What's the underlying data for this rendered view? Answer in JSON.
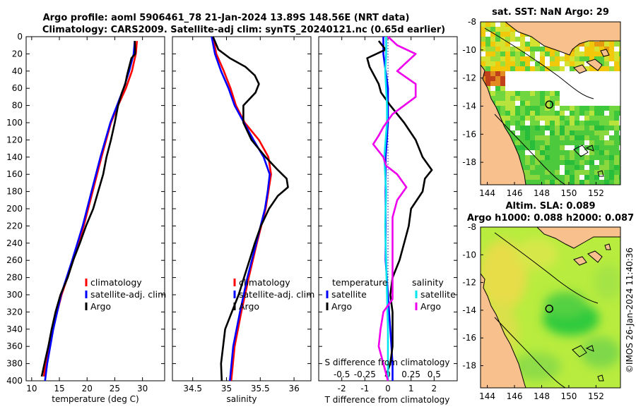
{
  "figure": {
    "title_line1": "Argo profile: aoml 5906461_78 21-Jan-2024 13.89S 148.56E (NRT data)",
    "title_line2": "Climatology: CARS2009. Satellite-adj clim: synTS_20240121.nc (0.65d earlier)",
    "credit": "©IMOS 26-Jan-2024 11:40:36"
  },
  "colors": {
    "climatology": "#ff0000",
    "satellite": "#0000ff",
    "argo": "#000000",
    "salinity": "#00e5ee",
    "argo_salinity": "#ee00ee",
    "land": "#f7c08c"
  },
  "chart_data": [
    {
      "id": "temperature",
      "type": "line",
      "xlabel": "temperature (deg C)",
      "ylabel": "",
      "xlim": [
        9,
        34
      ],
      "ylim": [
        0,
        400
      ],
      "y_reversed": true,
      "xticks": [
        10,
        15,
        20,
        25,
        30
      ],
      "yticks": [
        0,
        20,
        40,
        60,
        80,
        100,
        120,
        140,
        160,
        180,
        200,
        220,
        240,
        260,
        280,
        300,
        320,
        340,
        360,
        380,
        400
      ],
      "legend": [
        "climatology",
        "satellite-adj. clim",
        "Argo"
      ],
      "legend_position": "bottom-right",
      "series": [
        {
          "name": "climatology",
          "color": "#ff0000",
          "depth": [
            5,
            20,
            40,
            60,
            80,
            100,
            140,
            180,
            220,
            260,
            300,
            340,
            380,
            395
          ],
          "values": [
            29.0,
            28.8,
            28.1,
            27.0,
            25.6,
            24.3,
            22.6,
            21.0,
            19.4,
            17.5,
            15.4,
            13.8,
            12.5,
            12.2
          ]
        },
        {
          "name": "satellite-adj. clim",
          "color": "#0000ff",
          "depth": [
            5,
            20,
            40,
            60,
            80,
            100,
            140,
            180,
            220,
            260,
            300,
            340,
            380,
            400
          ],
          "values": [
            28.6,
            28.4,
            27.6,
            26.6,
            25.4,
            24.2,
            22.4,
            20.8,
            19.2,
            17.3,
            15.3,
            13.9,
            12.8,
            12.4
          ]
        },
        {
          "name": "Argo",
          "color": "#000000",
          "depth": [
            5,
            20,
            25,
            35,
            45,
            55,
            65,
            80,
            100,
            120,
            140,
            160,
            180,
            200,
            220,
            240,
            260,
            280,
            300,
            320,
            340,
            360,
            380,
            395
          ],
          "values": [
            28.6,
            28.7,
            28.0,
            27.6,
            27.2,
            26.9,
            26.3,
            25.6,
            25.0,
            24.3,
            23.5,
            22.9,
            22.0,
            21.1,
            19.8,
            18.7,
            17.5,
            16.5,
            15.2,
            14.3,
            13.6,
            13.0,
            12.3,
            11.8
          ]
        }
      ]
    },
    {
      "id": "salinity",
      "type": "line",
      "xlabel": "salinity",
      "ylabel": "",
      "xlim": [
        34.2,
        36.25
      ],
      "ylim": [
        0,
        400
      ],
      "y_reversed": true,
      "xticks": [
        34.5,
        35,
        35.5,
        36
      ],
      "legend": [
        "climatology",
        "satellite-adj. clim",
        "Argo"
      ],
      "legend_position": "bottom-right",
      "series": [
        {
          "name": "climatology",
          "color": "#ff0000",
          "depth": [
            0,
            20,
            40,
            60,
            80,
            100,
            120,
            140,
            160,
            180,
            200,
            240,
            280,
            320,
            360,
            400
          ],
          "values": [
            34.8,
            34.85,
            34.96,
            35.06,
            35.14,
            35.27,
            35.48,
            35.62,
            35.66,
            35.62,
            35.58,
            35.45,
            35.33,
            35.22,
            35.12,
            35.07
          ]
        },
        {
          "name": "satellite-adj. clim",
          "color": "#0000ff",
          "depth": [
            0,
            20,
            40,
            60,
            80,
            100,
            120,
            140,
            160,
            180,
            200,
            240,
            280,
            320,
            360,
            400
          ],
          "values": [
            34.78,
            34.83,
            34.92,
            35.03,
            35.12,
            35.26,
            35.4,
            35.55,
            35.64,
            35.61,
            35.57,
            35.44,
            35.31,
            35.2,
            35.1,
            35.05
          ]
        },
        {
          "name": "Argo",
          "color": "#000000",
          "depth": [
            0,
            15,
            25,
            35,
            45,
            55,
            65,
            80,
            100,
            120,
            140,
            155,
            165,
            175,
            185,
            200,
            220,
            240,
            260,
            280,
            300,
            320,
            340,
            360,
            380,
            400
          ],
          "values": [
            34.8,
            34.88,
            35.05,
            35.28,
            35.42,
            35.48,
            35.43,
            35.25,
            35.25,
            35.37,
            35.58,
            35.76,
            35.89,
            35.91,
            35.76,
            35.63,
            35.51,
            35.42,
            35.34,
            35.26,
            35.18,
            35.08,
            34.98,
            34.95,
            34.92,
            34.93
          ]
        }
      ]
    },
    {
      "id": "difference",
      "type": "line",
      "xlabel": "T difference from climatology",
      "top_xlabel": "S difference from climatology",
      "ylabel": "",
      "xlim": [
        -3,
        3
      ],
      "top_xlim": [
        -0.75,
        0.75
      ],
      "ylim": [
        0,
        400
      ],
      "y_reversed": true,
      "xticks": [
        -2,
        -1,
        0,
        1,
        2
      ],
      "top_xticks": [
        "-0.5",
        "-0.25",
        "0",
        "0.25",
        "0.5"
      ],
      "legend_left_title": "temperature",
      "legend_right_title": "salinity",
      "legend_left": [
        "satellite",
        "Argo"
      ],
      "legend_right": [
        "satellite",
        "Argo"
      ],
      "legend_position": "bottom",
      "series": [
        {
          "name": "temperature satellite",
          "axis": "T",
          "color": "#0000ff",
          "depth": [
            0,
            20,
            40,
            60,
            80,
            100,
            140,
            180,
            220,
            260,
            300,
            340,
            380,
            400
          ],
          "values": [
            -0.2,
            -0.2,
            -0.1,
            0.0,
            0.0,
            0.0,
            -0.1,
            -0.1,
            -0.1,
            -0.1,
            0.0,
            0.1,
            0.2,
            0.2
          ]
        },
        {
          "name": "temperature Argo",
          "axis": "T",
          "color": "#000000",
          "depth": [
            5,
            15,
            25,
            35,
            45,
            55,
            65,
            80,
            100,
            120,
            140,
            155,
            165,
            180,
            200,
            220,
            240,
            260,
            280,
            300,
            320,
            340,
            360,
            380,
            395
          ],
          "values": [
            -0.4,
            -0.1,
            -0.9,
            -0.8,
            -0.6,
            -0.4,
            -0.3,
            0.1,
            0.7,
            1.2,
            1.5,
            1.9,
            1.6,
            1.5,
            1.0,
            0.9,
            0.7,
            0.5,
            0.2,
            0.1,
            0.2,
            0.2,
            0.2,
            0.1,
            -0.1
          ]
        },
        {
          "name": "salinity satellite",
          "axis": "S",
          "color": "#00e5ee",
          "depth": [
            0,
            20,
            40,
            60,
            80,
            100,
            140,
            180,
            220,
            260,
            300,
            340,
            380,
            400
          ],
          "values": [
            -0.02,
            -0.02,
            -0.03,
            -0.02,
            -0.01,
            -0.01,
            -0.04,
            -0.02,
            -0.03,
            -0.02,
            -0.01,
            0.0,
            0.0,
            0.0
          ]
        },
        {
          "name": "salinity Argo",
          "axis": "S",
          "color": "#ee00ee",
          "depth": [
            0,
            10,
            20,
            30,
            40,
            55,
            70,
            90,
            105,
            115,
            125,
            140,
            150,
            160,
            175,
            190,
            210,
            230,
            250,
            270,
            290,
            305,
            320,
            340,
            360,
            380,
            400
          ],
          "values": [
            0.0,
            0.1,
            0.3,
            0.2,
            0.1,
            0.3,
            0.3,
            0.05,
            -0.05,
            -0.1,
            -0.16,
            -0.05,
            -0.02,
            0.1,
            0.2,
            0.1,
            0.05,
            0.05,
            0.05,
            0.05,
            0.05,
            0.05,
            -0.05,
            -0.08,
            -0.1,
            -0.05,
            0.0
          ]
        }
      ]
    },
    {
      "id": "sst_map",
      "type": "heatmap",
      "title": "sat. SST: NaN Argo: 29",
      "xlim": [
        143.5,
        153.8
      ],
      "ylim": [
        -19.6,
        -8.0
      ],
      "xticks": [
        144,
        146,
        148,
        150,
        152
      ],
      "yticks": [
        -8,
        -10,
        -12,
        -14,
        -16,
        -18
      ],
      "argo_location": [
        148.56,
        -13.89
      ]
    },
    {
      "id": "sla_map",
      "type": "heatmap",
      "title": "Altim. SLA: 0.089",
      "subtitle": "Argo h1000: 0.088 h2000: 0.087",
      "xlim": [
        143.5,
        153.8
      ],
      "ylim": [
        -19.6,
        -8.0
      ],
      "xticks": [
        144,
        146,
        148,
        150,
        152
      ],
      "yticks": [
        -8,
        -10,
        -12,
        -14,
        -16,
        -18
      ],
      "argo_location": [
        148.56,
        -13.89
      ]
    }
  ]
}
